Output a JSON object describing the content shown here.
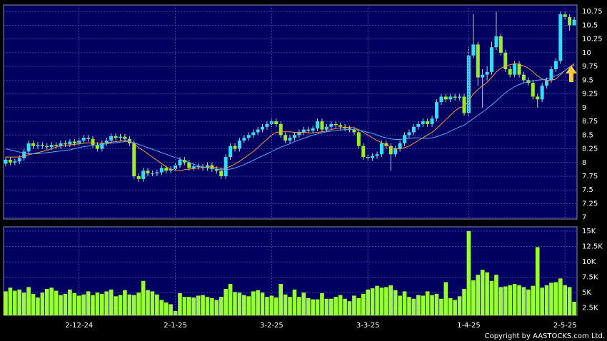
{
  "chart_data": [
    {
      "type": "candlestick",
      "up_color": "#33ddff",
      "down_color": "#99ee22",
      "wick_color": "#cccccc",
      "open": [
        7.98,
        8.05,
        8.0,
        8.02,
        8.08,
        8.2,
        8.35,
        8.3,
        8.32,
        8.3,
        8.28,
        8.32,
        8.3,
        8.35,
        8.33,
        8.38,
        8.35,
        8.4,
        8.45,
        8.43,
        8.32,
        8.25,
        8.35,
        8.4,
        8.48,
        8.45,
        8.47,
        8.43,
        8.35,
        7.75,
        7.7,
        7.85,
        7.8,
        7.8,
        7.82,
        7.9,
        7.85,
        7.88,
        7.95,
        8.05,
        8.0,
        7.9,
        7.93,
        7.92,
        7.9,
        7.95,
        7.88,
        7.85,
        7.75,
        8.1,
        8.3,
        8.25,
        8.4,
        8.45,
        8.5,
        8.55,
        8.6,
        8.65,
        8.7,
        8.75,
        8.7,
        8.5,
        8.4,
        8.45,
        8.5,
        8.55,
        8.6,
        8.58,
        8.62,
        8.75,
        8.6,
        8.65,
        8.7,
        8.68,
        8.65,
        8.62,
        8.6,
        8.55,
        8.3,
        8.1,
        8.08,
        8.12,
        8.15,
        8.35,
        8.3,
        8.15,
        8.25,
        8.35,
        8.5,
        8.55,
        8.65,
        8.7,
        8.75,
        8.7,
        8.8,
        9.1,
        9.2,
        9.15,
        9.2,
        9.18,
        9.2,
        8.9,
        9.95,
        10.15,
        9.55,
        9.6,
        9.65,
        10.1,
        10.3,
        10.0,
        9.7,
        9.6,
        9.8,
        9.6,
        9.5,
        9.45,
        9.2,
        9.15,
        9.4,
        9.5,
        9.7,
        9.85,
        10.7,
        10.65,
        10.5
      ],
      "high": [
        8.1,
        8.1,
        8.07,
        8.13,
        8.25,
        8.4,
        8.4,
        8.37,
        8.37,
        8.35,
        8.37,
        8.37,
        8.4,
        8.4,
        8.43,
        8.43,
        8.45,
        8.5,
        8.5,
        8.48,
        8.37,
        8.4,
        8.45,
        8.53,
        8.53,
        8.52,
        8.52,
        8.48,
        8.4,
        7.8,
        7.9,
        7.9,
        7.85,
        7.87,
        7.95,
        7.95,
        7.93,
        8.0,
        8.1,
        8.1,
        8.05,
        7.98,
        7.98,
        7.97,
        8.0,
        8.0,
        7.93,
        7.9,
        8.15,
        8.35,
        8.35,
        8.45,
        8.5,
        8.55,
        8.6,
        8.65,
        8.7,
        8.75,
        8.8,
        8.8,
        8.75,
        8.55,
        8.5,
        8.55,
        8.6,
        8.65,
        8.65,
        8.67,
        8.8,
        8.8,
        8.7,
        8.75,
        8.75,
        8.73,
        8.7,
        8.67,
        8.65,
        8.6,
        8.35,
        8.15,
        8.17,
        8.2,
        8.4,
        8.4,
        8.35,
        8.3,
        8.4,
        8.55,
        8.6,
        8.7,
        8.75,
        8.8,
        8.8,
        8.85,
        9.15,
        9.25,
        9.25,
        9.25,
        9.25,
        9.25,
        9.25,
        10.1,
        10.7,
        10.2,
        9.7,
        9.75,
        10.2,
        10.75,
        10.35,
        10.05,
        9.75,
        9.85,
        9.85,
        9.65,
        9.55,
        9.5,
        9.25,
        9.45,
        9.55,
        9.75,
        9.9,
        10.75,
        10.75,
        10.7,
        10.65
      ],
      "low": [
        7.93,
        7.95,
        7.95,
        7.97,
        8.03,
        8.15,
        8.25,
        8.25,
        8.25,
        8.23,
        8.23,
        8.25,
        8.25,
        8.28,
        8.28,
        8.3,
        8.3,
        8.35,
        8.38,
        8.27,
        8.2,
        8.2,
        8.3,
        8.35,
        8.4,
        8.4,
        8.38,
        8.3,
        7.7,
        7.65,
        7.65,
        7.75,
        7.75,
        7.75,
        7.77,
        7.8,
        7.8,
        7.83,
        7.9,
        7.95,
        7.85,
        7.85,
        7.87,
        7.85,
        7.85,
        7.83,
        7.8,
        7.7,
        7.7,
        8.05,
        8.2,
        8.2,
        8.35,
        8.4,
        8.45,
        8.5,
        8.55,
        8.6,
        8.65,
        8.65,
        8.45,
        8.35,
        8.35,
        8.4,
        8.45,
        8.5,
        8.53,
        8.53,
        8.57,
        8.55,
        8.55,
        8.6,
        8.63,
        8.6,
        8.57,
        8.55,
        8.5,
        8.25,
        8.05,
        8.03,
        8.03,
        8.07,
        8.1,
        8.25,
        7.85,
        8.1,
        8.2,
        8.3,
        8.45,
        8.5,
        8.6,
        8.65,
        8.65,
        8.65,
        8.75,
        9.05,
        9.1,
        9.1,
        9.13,
        9.13,
        8.85,
        8.85,
        9.9,
        9.4,
        9.0,
        9.5,
        9.6,
        10.05,
        9.95,
        9.65,
        9.55,
        9.55,
        9.55,
        9.45,
        9.4,
        9.15,
        9.0,
        9.1,
        9.35,
        9.45,
        9.65,
        9.8,
        10.6,
        10.4,
        10.5
      ],
      "close": [
        8.05,
        8.0,
        8.02,
        8.08,
        8.2,
        8.35,
        8.3,
        8.32,
        8.3,
        8.28,
        8.32,
        8.3,
        8.35,
        8.33,
        8.38,
        8.35,
        8.4,
        8.45,
        8.43,
        8.32,
        8.25,
        8.35,
        8.4,
        8.48,
        8.45,
        8.47,
        8.43,
        8.35,
        7.75,
        7.7,
        7.85,
        7.8,
        7.8,
        7.82,
        7.9,
        7.85,
        7.88,
        7.95,
        8.05,
        8.0,
        7.9,
        7.93,
        7.92,
        7.9,
        7.95,
        7.88,
        7.85,
        7.75,
        8.1,
        8.3,
        8.25,
        8.4,
        8.45,
        8.5,
        8.55,
        8.6,
        8.65,
        8.7,
        8.75,
        8.7,
        8.5,
        8.4,
        8.45,
        8.5,
        8.55,
        8.6,
        8.58,
        8.62,
        8.75,
        8.6,
        8.65,
        8.7,
        8.68,
        8.65,
        8.62,
        8.6,
        8.55,
        8.3,
        8.1,
        8.08,
        8.12,
        8.15,
        8.35,
        8.3,
        8.15,
        8.25,
        8.35,
        8.5,
        8.55,
        8.65,
        8.7,
        8.75,
        8.7,
        8.8,
        9.1,
        9.2,
        9.15,
        9.2,
        9.18,
        9.2,
        8.9,
        9.95,
        10.15,
        9.55,
        9.6,
        9.65,
        10.1,
        10.3,
        10.0,
        9.7,
        9.6,
        9.8,
        9.6,
        9.5,
        9.45,
        9.2,
        9.15,
        9.4,
        9.5,
        9.7,
        9.85,
        10.7,
        10.65,
        10.5,
        10.6
      ],
      "series": [
        {
          "color": "#ff9933",
          "values": [
            8.1,
            8.1,
            8.1,
            8.1,
            8.12,
            8.14,
            8.16,
            8.18,
            8.2,
            8.22,
            8.25,
            8.28,
            8.3,
            8.31,
            8.32,
            8.33,
            8.34,
            8.35,
            8.36,
            8.36,
            8.35,
            8.35,
            8.36,
            8.37,
            8.38,
            8.39,
            8.4,
            8.4,
            8.34,
            8.27,
            8.22,
            8.16,
            8.1,
            8.04,
            7.98,
            7.92,
            7.88,
            7.86,
            7.85,
            7.87,
            7.88,
            7.89,
            7.9,
            7.91,
            7.92,
            7.92,
            7.91,
            7.89,
            7.9,
            7.93,
            7.97,
            8.02,
            8.08,
            8.14,
            8.2,
            8.27,
            8.35,
            8.42,
            8.5,
            8.55,
            8.56,
            8.56,
            8.56,
            8.55,
            8.55,
            8.55,
            8.54,
            8.54,
            8.55,
            8.56,
            8.58,
            8.6,
            8.62,
            8.63,
            8.64,
            8.64,
            8.63,
            8.6,
            8.55,
            8.5,
            8.45,
            8.4,
            8.36,
            8.32,
            8.28,
            8.25,
            8.25,
            8.27,
            8.3,
            8.35,
            8.4,
            8.45,
            8.5,
            8.55,
            8.62,
            8.7,
            8.78,
            8.86,
            8.94,
            9.0,
            9.02,
            9.12,
            9.25,
            9.33,
            9.4,
            9.46,
            9.55,
            9.65,
            9.72,
            9.76,
            9.78,
            9.8,
            9.79,
            9.76,
            9.72,
            9.65,
            9.58,
            9.52,
            9.5,
            9.5,
            9.52,
            9.6,
            9.68,
            9.74,
            9.8
          ]
        },
        {
          "color": "#55aaff",
          "values": [
            8.25,
            8.23,
            8.21,
            8.19,
            8.17,
            8.16,
            8.16,
            8.16,
            8.17,
            8.18,
            8.19,
            8.2,
            8.21,
            8.22,
            8.23,
            8.25,
            8.27,
            8.29,
            8.3,
            8.31,
            8.32,
            8.33,
            8.34,
            8.35,
            8.36,
            8.37,
            8.38,
            8.38,
            8.36,
            8.33,
            8.3,
            8.27,
            8.24,
            8.21,
            8.18,
            8.15,
            8.12,
            8.09,
            8.06,
            8.03,
            8.0,
            7.97,
            7.94,
            7.92,
            7.9,
            7.89,
            7.88,
            7.87,
            7.87,
            7.88,
            7.9,
            7.93,
            7.96,
            8.0,
            8.04,
            8.08,
            8.12,
            8.16,
            8.2,
            8.24,
            8.28,
            8.31,
            8.34,
            8.38,
            8.41,
            8.44,
            8.47,
            8.5,
            8.52,
            8.54,
            8.56,
            8.57,
            8.58,
            8.59,
            8.6,
            8.6,
            8.6,
            8.59,
            8.57,
            8.55,
            8.53,
            8.5,
            8.47,
            8.45,
            8.43,
            8.42,
            8.42,
            8.43,
            8.44,
            8.45,
            8.45,
            8.44,
            8.44,
            8.45,
            8.47,
            8.5,
            8.53,
            8.57,
            8.61,
            8.65,
            8.68,
            8.74,
            8.8,
            8.86,
            8.92,
            8.98,
            9.05,
            9.12,
            9.2,
            9.27,
            9.33,
            9.38,
            9.42,
            9.45,
            9.47,
            9.49,
            9.5,
            9.51,
            9.52,
            9.55,
            9.58,
            9.62,
            9.68,
            9.73,
            9.78
          ]
        }
      ],
      "ylim": [
        6.97,
        10.87
      ],
      "yticks": [
        7,
        7.25,
        7.5,
        7.75,
        8,
        8.25,
        8.5,
        8.75,
        9,
        9.25,
        9.5,
        9.75,
        10,
        10.25,
        10.5,
        10.75
      ],
      "grid": true
    },
    {
      "type": "bar",
      "color": "#99ff33",
      "categories": [
        null,
        null,
        null,
        null,
        null,
        null,
        null,
        null,
        null,
        null,
        null,
        null,
        null,
        null,
        null,
        null,
        "2-12-24",
        null,
        null,
        null,
        null,
        null,
        null,
        null,
        null,
        null,
        null,
        null,
        null,
        null,
        null,
        null,
        null,
        null,
        null,
        null,
        null,
        "2-1-25",
        null,
        null,
        null,
        null,
        null,
        null,
        null,
        null,
        null,
        null,
        null,
        null,
        null,
        null,
        null,
        null,
        null,
        null,
        null,
        null,
        "3-2-25",
        null,
        null,
        null,
        null,
        null,
        null,
        null,
        null,
        null,
        null,
        null,
        null,
        null,
        null,
        null,
        null,
        null,
        null,
        null,
        null,
        "3-3-25",
        null,
        null,
        null,
        null,
        null,
        null,
        null,
        null,
        null,
        null,
        null,
        null,
        null,
        null,
        null,
        null,
        null,
        null,
        null,
        null,
        null,
        "1-4-25",
        null,
        null,
        null,
        null,
        null,
        null,
        null,
        null,
        null,
        null,
        null,
        null,
        null,
        null,
        null,
        null,
        null,
        null,
        null,
        null,
        "2-5-25",
        null,
        null
      ],
      "values": [
        5200,
        5800,
        5300,
        5500,
        5000,
        5900,
        4800,
        4200,
        5000,
        5600,
        5800,
        5300,
        4600,
        4800,
        5500,
        4900,
        4500,
        4700,
        5200,
        4600,
        5000,
        4800,
        5200,
        5500,
        4400,
        4600,
        5400,
        4700,
        4600,
        5000,
        6900,
        5400,
        5200,
        4700,
        3800,
        3400,
        3100,
        2000,
        4900,
        4300,
        4300,
        4200,
        4500,
        4600,
        4300,
        4100,
        3800,
        4300,
        5600,
        6400,
        5100,
        5000,
        4600,
        4400,
        5200,
        5400,
        5000,
        4300,
        4500,
        4200,
        6400,
        4700,
        4300,
        5500,
        4300,
        5000,
        4100,
        3900,
        3900,
        4900,
        4000,
        4000,
        4300,
        4600,
        4000,
        3600,
        4500,
        4100,
        4800,
        5500,
        5700,
        6100,
        5800,
        5900,
        6200,
        5400,
        4500,
        5200,
        4300,
        4000,
        4600,
        4500,
        5200,
        4600,
        4800,
        4000,
        6700,
        4100,
        3800,
        4400,
        5600,
        15000,
        7000,
        7900,
        8700,
        8300,
        6900,
        7900,
        5900,
        6000,
        6200,
        6400,
        6200,
        5900,
        5500,
        6100,
        12400,
        5800,
        6200,
        6600,
        6700,
        7300,
        6200,
        5900,
        3500
      ],
      "ylim": [
        1300,
        15700
      ],
      "yticks": [
        {
          "value": 2500,
          "label": "2.5K"
        },
        {
          "value": 5000,
          "label": "5K"
        },
        {
          "value": 7500,
          "label": "7.5K"
        },
        {
          "value": 10000,
          "label": "10K"
        },
        {
          "value": 12500,
          "label": "12.5K"
        },
        {
          "value": 15000,
          "label": "15K"
        }
      ],
      "grid": true
    }
  ],
  "footer": "Copyright by AASTOCKS.com Ltd."
}
